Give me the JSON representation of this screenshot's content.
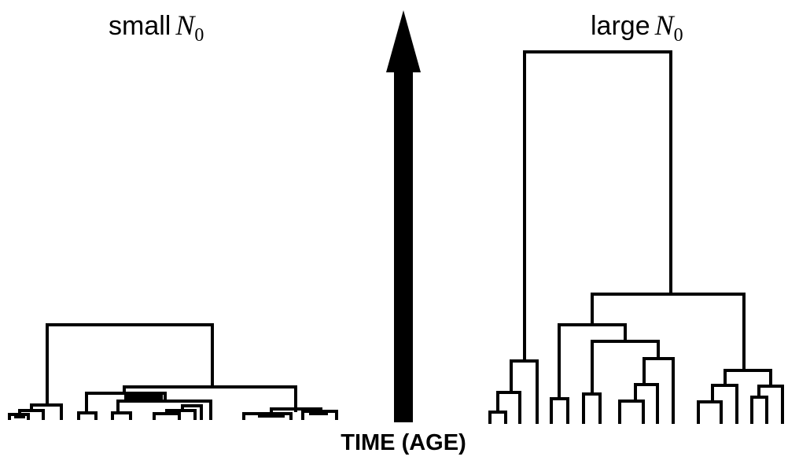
{
  "left_tree": {
    "label_text": "small",
    "label_var": "N",
    "label_sub": "0"
  },
  "right_tree": {
    "label_text": "large",
    "label_var": "N",
    "label_sub": "0"
  },
  "axis": {
    "label": "TIME (AGE)"
  },
  "colors": {
    "ink": "#000000",
    "background": "#ffffff"
  }
}
